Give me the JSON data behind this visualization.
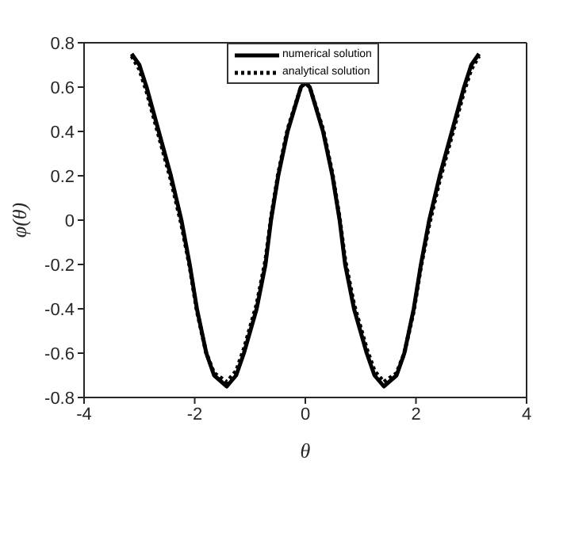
{
  "chart_data": {
    "type": "line",
    "xlabel": "θ",
    "ylabel": "φ(θ)",
    "xlim": [
      -4,
      4
    ],
    "xticks": [
      -4,
      -2,
      0,
      2,
      4
    ],
    "ylim": [
      -0.8,
      0.8
    ],
    "yticks": [
      -0.8,
      -0.6,
      -0.4,
      -0.2,
      0,
      0.2,
      0.4,
      0.6,
      0.8
    ],
    "legend": "top",
    "marker": "none",
    "series": [
      {
        "name": "numerical solution",
        "color": "#000000",
        "line_style": "solid",
        "x": [
          -3.14,
          -3.0,
          -2.87,
          -2.65,
          -2.43,
          -2.24,
          -2.09,
          -1.96,
          -1.79,
          -1.65,
          -1.42,
          -1.25,
          -1.11,
          -0.88,
          -0.72,
          -0.62,
          -0.49,
          -0.32,
          -0.08,
          0,
          0.08,
          0.32,
          0.49,
          0.62,
          0.72,
          0.88,
          1.11,
          1.25,
          1.42,
          1.65,
          1.79,
          1.96,
          2.09,
          2.24,
          2.43,
          2.65,
          2.87,
          3.0,
          3.14
        ],
        "values": [
          0.75,
          0.7,
          0.6,
          0.4,
          0.2,
          0,
          -0.2,
          -0.4,
          -0.6,
          -0.7,
          -0.75,
          -0.7,
          -0.6,
          -0.4,
          -0.2,
          0,
          0.2,
          0.4,
          0.6,
          0.62,
          0.6,
          0.4,
          0.2,
          0,
          -0.2,
          -0.4,
          -0.6,
          -0.7,
          -0.75,
          -0.7,
          -0.6,
          -0.4,
          -0.2,
          0,
          0.2,
          0.4,
          0.6,
          0.7,
          0.75
        ]
      },
      {
        "name": "analytical solution",
        "color": "#000000",
        "line_style": "dotted",
        "x": [
          -3.14,
          -3.0,
          -2.87,
          -2.65,
          -2.43,
          -2.24,
          -2.09,
          -1.96,
          -1.79,
          -1.65,
          -1.42,
          -1.25,
          -1.11,
          -0.88,
          -0.72,
          -0.62,
          -0.49,
          -0.32,
          -0.08,
          0,
          0.08,
          0.32,
          0.49,
          0.62,
          0.72,
          0.88,
          1.11,
          1.25,
          1.42,
          1.65,
          1.79,
          1.96,
          2.09,
          2.24,
          2.43,
          2.65,
          2.87,
          3.0,
          3.14
        ],
        "values": [
          0.74,
          0.68,
          0.58,
          0.38,
          0.18,
          -0.02,
          -0.21,
          -0.41,
          -0.6,
          -0.69,
          -0.73,
          -0.68,
          -0.58,
          -0.38,
          -0.18,
          0.01,
          0.21,
          0.41,
          0.6,
          0.62,
          0.6,
          0.41,
          0.21,
          0.01,
          -0.18,
          -0.38,
          -0.58,
          -0.68,
          -0.73,
          -0.69,
          -0.6,
          -0.41,
          -0.21,
          -0.02,
          0.18,
          0.38,
          0.58,
          0.68,
          0.74
        ]
      }
    ]
  }
}
